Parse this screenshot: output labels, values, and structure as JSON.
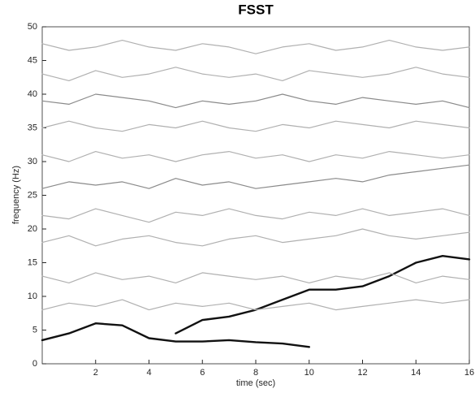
{
  "chart_data": {
    "type": "line",
    "title": "FSST",
    "xlabel": "time (sec)",
    "ylabel": "frequency (Hz)",
    "x": [
      0,
      1,
      2,
      3,
      4,
      5,
      6,
      7,
      8,
      9,
      10,
      11,
      12,
      13,
      14,
      15,
      16
    ],
    "xlim": [
      0,
      16
    ],
    "xticks": [
      2,
      4,
      6,
      8,
      10,
      12,
      14,
      16
    ],
    "ylim": [
      0,
      50
    ],
    "yticks": [
      0,
      5,
      10,
      15,
      20,
      25,
      30,
      35,
      40,
      45,
      50
    ],
    "grid": false,
    "series": [
      {
        "color": "#111111",
        "values": [
          3.5,
          4.5,
          6,
          5.7,
          3.8,
          3.3,
          3.3,
          3.5,
          3.2,
          3,
          2.5,
          null,
          null,
          null,
          null,
          null,
          null
        ]
      },
      {
        "color": "#111111",
        "values": [
          null,
          null,
          null,
          null,
          null,
          4.5,
          6.5,
          7,
          8,
          9.5,
          11,
          11,
          11.5,
          13,
          15,
          16,
          15.5
        ]
      },
      {
        "color": "#b0b0b0",
        "values": [
          8,
          9,
          8.5,
          9.5,
          8,
          9,
          8.5,
          9,
          8,
          8.5,
          9,
          8,
          8.5,
          9,
          9.5,
          9,
          9.5
        ]
      },
      {
        "color": "#b0b0b0",
        "values": [
          13,
          12,
          13.5,
          12.5,
          13,
          12,
          13.5,
          13,
          12.5,
          13,
          12,
          13,
          12.5,
          13.5,
          12,
          13,
          12.5
        ]
      },
      {
        "color": "#b0b0b0",
        "values": [
          18,
          19,
          17.5,
          18.5,
          19,
          18,
          17.5,
          18.5,
          19,
          18,
          18.5,
          19,
          20,
          19,
          18.5,
          19,
          19.5
        ]
      },
      {
        "color": "#b0b0b0",
        "values": [
          22,
          21.5,
          23,
          22,
          21,
          22.5,
          22,
          23,
          22,
          21.5,
          22.5,
          22,
          23,
          22,
          22.5,
          23,
          22
        ]
      },
      {
        "color": "#8a8a8a",
        "values": [
          26,
          27,
          26.5,
          27,
          26,
          27.5,
          26.5,
          27,
          26,
          26.5,
          27,
          27.5,
          27,
          28,
          28.5,
          29,
          29.5
        ]
      },
      {
        "color": "#b0b0b0",
        "values": [
          31,
          30,
          31.5,
          30.5,
          31,
          30,
          31,
          31.5,
          30.5,
          31,
          30,
          31,
          30.5,
          31.5,
          31,
          30.5,
          31
        ]
      },
      {
        "color": "#b0b0b0",
        "values": [
          35,
          36,
          35,
          34.5,
          35.5,
          35,
          36,
          35,
          34.5,
          35.5,
          35,
          36,
          35.5,
          35,
          36,
          35.5,
          35
        ]
      },
      {
        "color": "#8a8a8a",
        "values": [
          39,
          38.5,
          40,
          39.5,
          39,
          38,
          39,
          38.5,
          39,
          40,
          39,
          38.5,
          39.5,
          39,
          38.5,
          39,
          38
        ]
      },
      {
        "color": "#b0b0b0",
        "values": [
          43,
          42,
          43.5,
          42.5,
          43,
          44,
          43,
          42.5,
          43,
          42,
          43.5,
          43,
          42.5,
          43,
          44,
          43,
          42.5
        ]
      },
      {
        "color": "#b0b0b0",
        "values": [
          47.5,
          46.5,
          47,
          48,
          47,
          46.5,
          47.5,
          47,
          46,
          47,
          47.5,
          46.5,
          47,
          48,
          47,
          46.5,
          47
        ]
      }
    ]
  }
}
